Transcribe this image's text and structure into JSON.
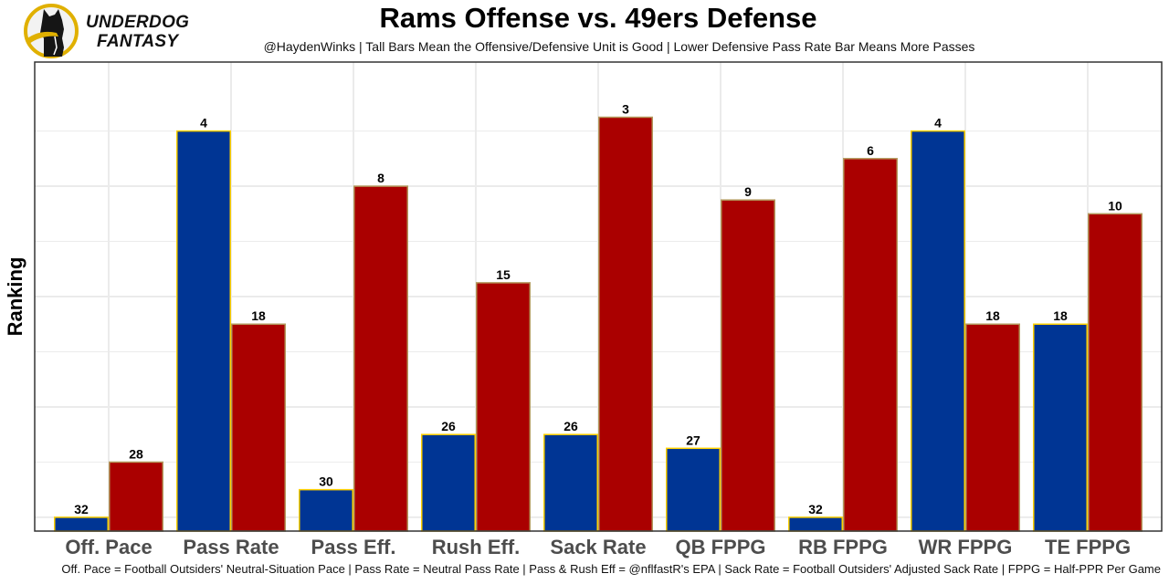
{
  "branding": {
    "logo_line1": "UNDERDOG",
    "logo_line2": "FANTASY",
    "logo_icon": "dog-silhouette-icon"
  },
  "colors": {
    "offense_fill": "#003594",
    "offense_border": "#FFD100",
    "defense_fill": "#AA0000",
    "defense_border": "#B3995D",
    "gridline": "#EBEBEB",
    "panel_border": "#333333"
  },
  "chart_data": {
    "type": "bar",
    "title": "Rams Offense vs. 49ers Defense",
    "subtitle": "@HaydenWinks | Tall Bars Mean the Offensive/Defensive Unit is Good | Lower Defensive Pass Rate Bar Means More Passes",
    "caption": "Off. Pace = Football Outsiders' Neutral-Situation Pace | Pass Rate = Neutral Pass Rate | Pass & Rush Eff = @nflfastR's EPA | Sack Rate = Football Outsiders' Adjusted Sack Rate | FPPG = Half-PPR Per Game",
    "xlabel": "",
    "ylabel": "Ranking",
    "y_axis": "rank, reversed (rank 1 tallest); bar height proportional to 33 - rank",
    "ylim_rank": [
      33,
      -1
    ],
    "major_grid_ranks": [
      8,
      16,
      24,
      32
    ],
    "minor_grid_ranks": [
      4,
      12,
      20,
      28
    ],
    "grid": true,
    "legend": "none",
    "categories": [
      "Off. Pace",
      "Pass Rate",
      "Pass Eff.",
      "Rush Eff.",
      "Sack Rate",
      "QB FPPG",
      "RB FPPG",
      "WR FPPG",
      "TE FPPG"
    ],
    "series": [
      {
        "name": "Rams Offense",
        "values": [
          32,
          4,
          30,
          26,
          26,
          27,
          32,
          4,
          18
        ]
      },
      {
        "name": "49ers Defense",
        "values": [
          28,
          18,
          8,
          15,
          3,
          9,
          6,
          18,
          10
        ]
      }
    ]
  }
}
